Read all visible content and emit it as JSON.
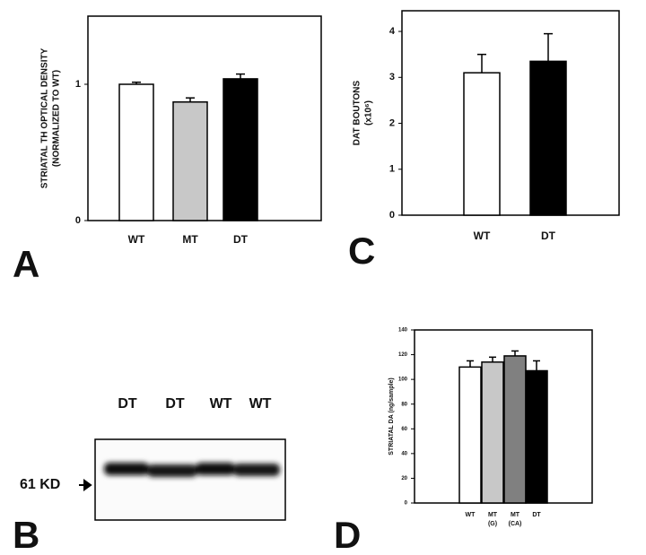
{
  "chart_data": [
    {
      "type": "bar",
      "ylabel": [
        "STRIATAL TH OPTICAL DENSITY",
        "(NORMALIZED TO WT)"
      ],
      "categories": [
        "WT",
        "MT",
        "DT"
      ],
      "values": [
        1.0,
        0.87,
        1.04
      ],
      "errors": [
        0.015,
        0.03,
        0.035
      ],
      "colors": [
        "#ffffff",
        "#c8c8c8",
        "#000000"
      ],
      "ylim": [
        0,
        1.5
      ],
      "yticks": [
        0,
        1
      ]
    },
    {
      "type": "bar",
      "ylabel": [
        "DAT BOUTONS",
        "(x10⁶)"
      ],
      "categories": [
        "WT",
        "DT"
      ],
      "values": [
        3.1,
        3.35
      ],
      "errors": [
        0.4,
        0.6
      ],
      "colors": [
        "#ffffff",
        "#000000"
      ],
      "ylim": [
        0,
        4.45
      ],
      "yticks": [
        0,
        1,
        2,
        3,
        4
      ]
    },
    {
      "type": "bar",
      "ylabel": [
        "STRIATAL DA (ng/sample)"
      ],
      "categories": [
        "WT",
        "MT",
        "MT",
        "DT"
      ],
      "category_notes": [
        null,
        "(G)",
        "(CA)",
        null
      ],
      "values": [
        110,
        114,
        119,
        107
      ],
      "errors": [
        5,
        4,
        4,
        8
      ],
      "colors": [
        "#ffffff",
        "#c8c8c8",
        "#808080",
        "#000000"
      ],
      "ylim": [
        0,
        140
      ],
      "yticks": [
        0,
        20,
        40,
        60,
        80,
        100,
        120,
        140
      ]
    }
  ],
  "panel_labels": [
    "A",
    "B",
    "C",
    "D"
  ],
  "blot": {
    "lanes": [
      "DT",
      "DT",
      "WT",
      "WT"
    ],
    "marker": "61 KD"
  }
}
